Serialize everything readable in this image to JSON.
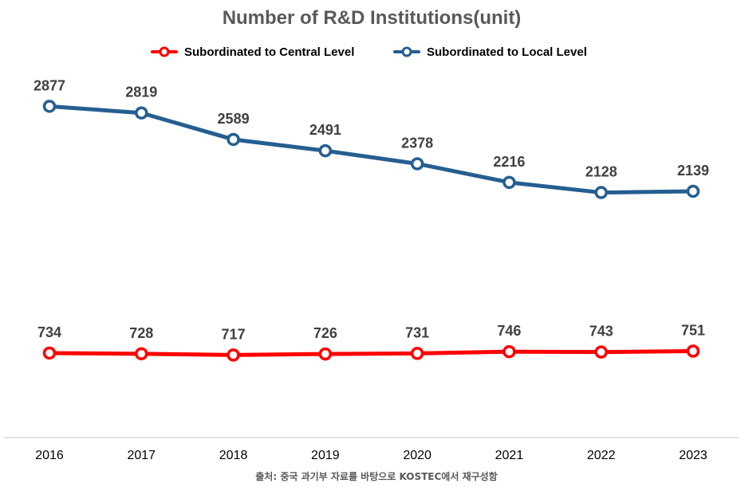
{
  "chart_data": {
    "type": "line",
    "title": "Number of R&D Institutions(unit)",
    "xlabel": "",
    "ylabel": "",
    "categories": [
      "2016",
      "2017",
      "2018",
      "2019",
      "2020",
      "2021",
      "2022",
      "2023"
    ],
    "ylim": [
      0,
      3800
    ],
    "grid": false,
    "legend_position": "top",
    "series": [
      {
        "name": "Subordinated to Central Level",
        "color": "#ff0000",
        "values": [
          734,
          728,
          717,
          726,
          731,
          746,
          743,
          751
        ]
      },
      {
        "name": "Subordinated to Local Level",
        "color": "#255e91",
        "values": [
          2877,
          2819,
          2589,
          2491,
          2378,
          2216,
          2128,
          2139
        ]
      }
    ],
    "source": "출처: 중국 과기부 자료를 바탕으로 KOSTEC에서 재구성함"
  },
  "colors": {
    "axis": "#d9d9d9",
    "marker_fill": "#ffffff"
  }
}
